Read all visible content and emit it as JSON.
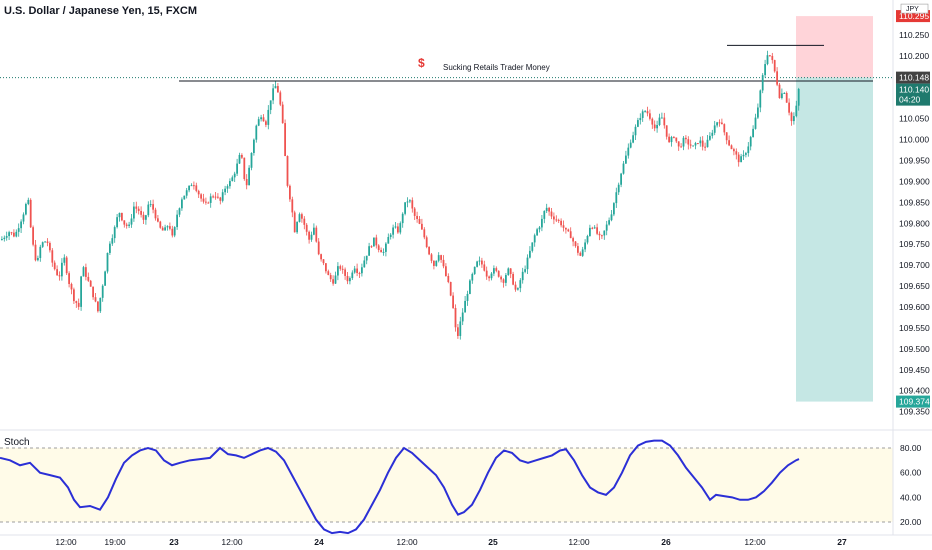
{
  "header": {
    "title": "U.S. Dollar / Japanese Yen, 15, FXCM"
  },
  "annotation": {
    "symbol": "$",
    "text": "Sucking Retails Trader Money"
  },
  "indicator": {
    "label": "Stoch",
    "levels": [
      80,
      20
    ],
    "ticks": [
      "80.00",
      "60.00",
      "40.00",
      "20.00"
    ]
  },
  "colors": {
    "up": "#26a69a",
    "down": "#ef5350",
    "stoch": "#2b2fd6",
    "profit": "#b2dfdb",
    "loss": "#ffcdd2",
    "current": "#1f7a6e"
  },
  "chart_data": {
    "type": "candlestick",
    "ylim": [
      109.33,
      110.3
    ],
    "y_ticks": [
      "110.250",
      "110.200",
      "110.150",
      "110.100",
      "110.050",
      "110.000",
      "109.950",
      "109.900",
      "109.850",
      "109.800",
      "109.750",
      "109.700",
      "109.650",
      "109.600",
      "109.550",
      "109.500",
      "109.450",
      "109.400",
      "109.350"
    ],
    "x_ticks": [
      "12:00",
      "19:00",
      "23",
      "12:00",
      "24",
      "12:00",
      "25",
      "12:00",
      "26",
      "12:00",
      "27"
    ],
    "price_path": [
      [
        0,
        109.76
      ],
      [
        4,
        109.77
      ],
      [
        8,
        109.78
      ],
      [
        14,
        109.77
      ],
      [
        22,
        109.82
      ],
      [
        27,
        109.86
      ],
      [
        31,
        109.76
      ],
      [
        36,
        109.7
      ],
      [
        40,
        109.75
      ],
      [
        46,
        109.76
      ],
      [
        52,
        109.7
      ],
      [
        58,
        109.67
      ],
      [
        63,
        109.72
      ],
      [
        68,
        109.66
      ],
      [
        73,
        109.62
      ],
      [
        78,
        109.6
      ],
      [
        81,
        109.7
      ],
      [
        86,
        109.67
      ],
      [
        92,
        109.63
      ],
      [
        97,
        109.59
      ],
      [
        103,
        109.67
      ],
      [
        108,
        109.75
      ],
      [
        113,
        109.78
      ],
      [
        118,
        109.83
      ],
      [
        123,
        109.8
      ],
      [
        128,
        109.79
      ],
      [
        133,
        109.84
      ],
      [
        138,
        109.83
      ],
      [
        143,
        109.8
      ],
      [
        148,
        109.85
      ],
      [
        153,
        109.83
      ],
      [
        158,
        109.79
      ],
      [
        163,
        109.78
      ],
      [
        168,
        109.8
      ],
      [
        172,
        109.76
      ],
      [
        176,
        109.82
      ],
      [
        181,
        109.86
      ],
      [
        187,
        109.88
      ],
      [
        192,
        109.9
      ],
      [
        198,
        109.87
      ],
      [
        204,
        109.84
      ],
      [
        209,
        109.86
      ],
      [
        214,
        109.87
      ],
      [
        219,
        109.85
      ],
      [
        225,
        109.89
      ],
      [
        230,
        109.9
      ],
      [
        235,
        109.93
      ],
      [
        240,
        109.97
      ],
      [
        245,
        109.88
      ],
      [
        250,
        109.96
      ],
      [
        255,
        110.03
      ],
      [
        260,
        110.06
      ],
      [
        265,
        110.04
      ],
      [
        270,
        110.1
      ],
      [
        274,
        110.13
      ],
      [
        278,
        110.11
      ],
      [
        282,
        110.03
      ],
      [
        286,
        109.9
      ],
      [
        290,
        109.85
      ],
      [
        294,
        109.78
      ],
      [
        298,
        109.83
      ],
      [
        303,
        109.8
      ],
      [
        308,
        109.76
      ],
      [
        313,
        109.79
      ],
      [
        318,
        109.72
      ],
      [
        323,
        109.7
      ],
      [
        328,
        109.67
      ],
      [
        333,
        109.66
      ],
      [
        338,
        109.7
      ],
      [
        343,
        109.68
      ],
      [
        348,
        109.66
      ],
      [
        353,
        109.7
      ],
      [
        358,
        109.68
      ],
      [
        363,
        109.71
      ],
      [
        368,
        109.74
      ],
      [
        373,
        109.76
      ],
      [
        378,
        109.74
      ],
      [
        383,
        109.73
      ],
      [
        388,
        109.77
      ],
      [
        393,
        109.79
      ],
      [
        398,
        109.78
      ],
      [
        403,
        109.84
      ],
      [
        408,
        109.86
      ],
      [
        413,
        109.82
      ],
      [
        418,
        109.8
      ],
      [
        423,
        109.77
      ],
      [
        428,
        109.73
      ],
      [
        433,
        109.7
      ],
      [
        438,
        109.73
      ],
      [
        443,
        109.69
      ],
      [
        448,
        109.65
      ],
      [
        452,
        109.6
      ],
      [
        456,
        109.52
      ],
      [
        460,
        109.57
      ],
      [
        464,
        109.61
      ],
      [
        468,
        109.65
      ],
      [
        472,
        109.68
      ],
      [
        477,
        109.71
      ],
      [
        482,
        109.7
      ],
      [
        487,
        109.67
      ],
      [
        492,
        109.69
      ],
      [
        497,
        109.68
      ],
      [
        502,
        109.66
      ],
      [
        507,
        109.69
      ],
      [
        512,
        109.66
      ],
      [
        516,
        109.63
      ],
      [
        520,
        109.67
      ],
      [
        525,
        109.7
      ],
      [
        530,
        109.74
      ],
      [
        535,
        109.78
      ],
      [
        540,
        109.8
      ],
      [
        545,
        109.84
      ],
      [
        550,
        109.82
      ],
      [
        555,
        109.81
      ],
      [
        560,
        109.8
      ],
      [
        565,
        109.78
      ],
      [
        570,
        109.77
      ],
      [
        575,
        109.74
      ],
      [
        580,
        109.72
      ],
      [
        585,
        109.76
      ],
      [
        590,
        109.8
      ],
      [
        595,
        109.78
      ],
      [
        600,
        109.76
      ],
      [
        605,
        109.79
      ],
      [
        610,
        109.82
      ],
      [
        615,
        109.87
      ],
      [
        620,
        109.92
      ],
      [
        625,
        109.96
      ],
      [
        630,
        110.0
      ],
      [
        635,
        110.03
      ],
      [
        640,
        110.06
      ],
      [
        645,
        110.07
      ],
      [
        650,
        110.05
      ],
      [
        655,
        110.02
      ],
      [
        660,
        110.06
      ],
      [
        664,
        110.03
      ],
      [
        668,
        109.99
      ],
      [
        673,
        110.01
      ],
      [
        678,
        109.98
      ],
      [
        683,
        110.0
      ],
      [
        688,
        109.99
      ],
      [
        693,
        109.98
      ],
      [
        698,
        110.0
      ],
      [
        703,
        109.98
      ],
      [
        708,
        110.0
      ],
      [
        713,
        110.03
      ],
      [
        718,
        110.05
      ],
      [
        723,
        110.02
      ],
      [
        728,
        109.99
      ],
      [
        733,
        109.97
      ],
      [
        738,
        109.95
      ],
      [
        743,
        109.96
      ],
      [
        748,
        109.99
      ],
      [
        753,
        110.03
      ],
      [
        758,
        110.09
      ],
      [
        763,
        110.17
      ],
      [
        767,
        110.21
      ],
      [
        771,
        110.19
      ],
      [
        775,
        110.15
      ],
      [
        779,
        110.1
      ],
      [
        783,
        110.12
      ],
      [
        787,
        110.08
      ],
      [
        791,
        110.04
      ],
      [
        795,
        110.07
      ],
      [
        799,
        110.14
      ]
    ],
    "stoch_path": [
      [
        0,
        72
      ],
      [
        10,
        70
      ],
      [
        20,
        66
      ],
      [
        30,
        68
      ],
      [
        40,
        60
      ],
      [
        50,
        58
      ],
      [
        60,
        56
      ],
      [
        68,
        48
      ],
      [
        74,
        38
      ],
      [
        80,
        32
      ],
      [
        90,
        33
      ],
      [
        100,
        30
      ],
      [
        108,
        40
      ],
      [
        116,
        55
      ],
      [
        124,
        68
      ],
      [
        132,
        74
      ],
      [
        140,
        78
      ],
      [
        148,
        80
      ],
      [
        156,
        78
      ],
      [
        164,
        70
      ],
      [
        172,
        66
      ],
      [
        180,
        68
      ],
      [
        190,
        70
      ],
      [
        200,
        71
      ],
      [
        210,
        72
      ],
      [
        220,
        80
      ],
      [
        228,
        75
      ],
      [
        236,
        74
      ],
      [
        244,
        72
      ],
      [
        252,
        75
      ],
      [
        260,
        78
      ],
      [
        268,
        80
      ],
      [
        276,
        77
      ],
      [
        284,
        70
      ],
      [
        292,
        58
      ],
      [
        300,
        46
      ],
      [
        308,
        34
      ],
      [
        316,
        22
      ],
      [
        324,
        14
      ],
      [
        332,
        11
      ],
      [
        340,
        12
      ],
      [
        348,
        11
      ],
      [
        356,
        14
      ],
      [
        364,
        22
      ],
      [
        372,
        34
      ],
      [
        380,
        46
      ],
      [
        388,
        60
      ],
      [
        396,
        72
      ],
      [
        404,
        80
      ],
      [
        412,
        76
      ],
      [
        420,
        70
      ],
      [
        428,
        64
      ],
      [
        436,
        58
      ],
      [
        444,
        48
      ],
      [
        452,
        34
      ],
      [
        458,
        26
      ],
      [
        464,
        28
      ],
      [
        472,
        34
      ],
      [
        480,
        46
      ],
      [
        488,
        60
      ],
      [
        496,
        72
      ],
      [
        504,
        78
      ],
      [
        512,
        76
      ],
      [
        520,
        70
      ],
      [
        528,
        68
      ],
      [
        536,
        70
      ],
      [
        544,
        72
      ],
      [
        552,
        74
      ],
      [
        560,
        78
      ],
      [
        566,
        79
      ],
      [
        574,
        70
      ],
      [
        582,
        58
      ],
      [
        590,
        48
      ],
      [
        598,
        44
      ],
      [
        606,
        42
      ],
      [
        614,
        48
      ],
      [
        622,
        60
      ],
      [
        630,
        74
      ],
      [
        638,
        82
      ],
      [
        646,
        85
      ],
      [
        654,
        86
      ],
      [
        662,
        86
      ],
      [
        670,
        82
      ],
      [
        678,
        74
      ],
      [
        686,
        64
      ],
      [
        694,
        56
      ],
      [
        702,
        48
      ],
      [
        710,
        38
      ],
      [
        716,
        42
      ],
      [
        724,
        41
      ],
      [
        732,
        40
      ],
      [
        740,
        38
      ],
      [
        748,
        38
      ],
      [
        756,
        40
      ],
      [
        764,
        45
      ],
      [
        772,
        52
      ],
      [
        780,
        60
      ],
      [
        788,
        66
      ],
      [
        796,
        70
      ],
      [
        799,
        71
      ]
    ],
    "levels": {
      "resistance": 110.14,
      "high": 110.225,
      "last": 110.148,
      "stop": 110.295,
      "target": 109.374
    },
    "labels": {
      "last": "110.148",
      "last_time": "04:20",
      "close": "110.140",
      "target": "109.374",
      "stop": "110.295",
      "pair": "JPY"
    }
  }
}
